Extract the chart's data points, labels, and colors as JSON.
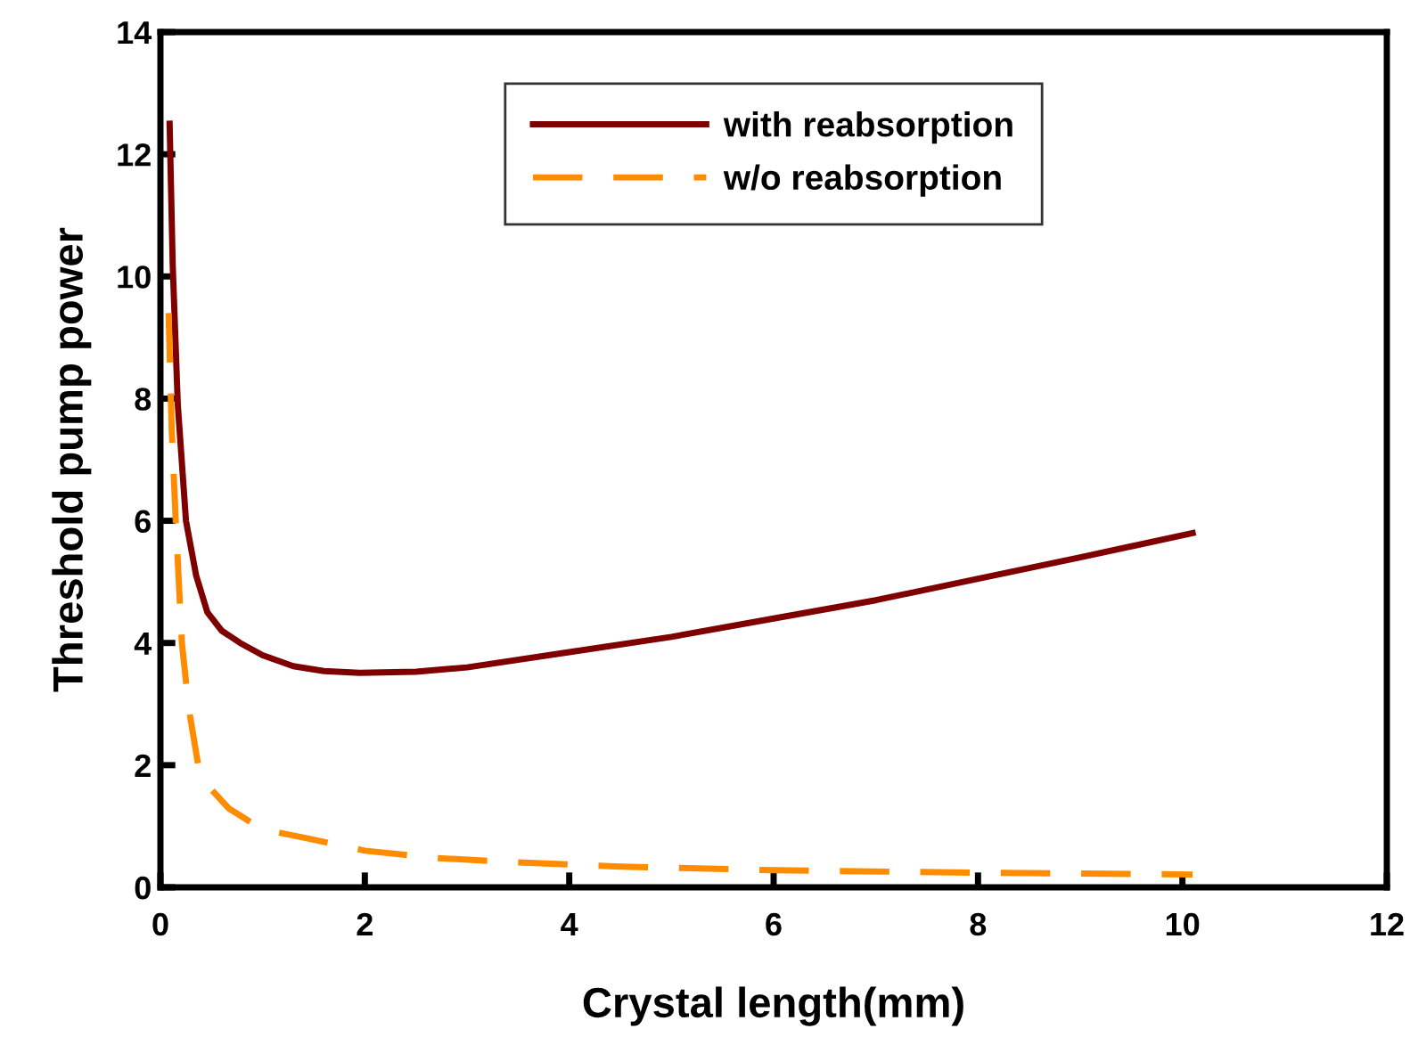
{
  "chart_data": {
    "type": "line",
    "xlabel": "Crystal length(mm)",
    "ylabel": "Threshold pump power",
    "xlim": [
      0,
      12
    ],
    "ylim": [
      0,
      14
    ],
    "xticks": [
      0,
      2,
      4,
      6,
      8,
      10,
      12
    ],
    "yticks": [
      0,
      2,
      4,
      6,
      8,
      10,
      12,
      14
    ],
    "grid": false,
    "legend": "top",
    "marker": "none",
    "series": [
      {
        "name": "with reabsorption",
        "color": "#7f0000",
        "line_style": "solid",
        "x": [
          0.09,
          0.12,
          0.17,
          0.25,
          0.35,
          0.46,
          0.6,
          0.78,
          1.0,
          1.3,
          1.6,
          1.95,
          2.5,
          3,
          4,
          5,
          6,
          7,
          8,
          9,
          10.1
        ],
        "values": [
          12.5,
          10.2,
          7.9,
          6.0,
          5.1,
          4.5,
          4.2,
          4.0,
          3.8,
          3.62,
          3.54,
          3.51,
          3.53,
          3.6,
          3.85,
          4.1,
          4.4,
          4.7,
          5.05,
          5.4,
          5.8
        ]
      },
      {
        "name": "w/o reabsorption",
        "color": "#ff8c00",
        "line_style": "dashed",
        "x": [
          0.08,
          0.11,
          0.15,
          0.21,
          0.28,
          0.37,
          0.5,
          0.67,
          0.9,
          1.15,
          1.44,
          2,
          2.7,
          3.47,
          4.5,
          6,
          8,
          10.1
        ],
        "values": [
          9.4,
          7.5,
          6.0,
          4.0,
          2.9,
          2.0,
          1.6,
          1.29,
          1.05,
          0.9,
          0.8,
          0.6,
          0.48,
          0.41,
          0.34,
          0.28,
          0.24,
          0.21
        ]
      }
    ]
  }
}
